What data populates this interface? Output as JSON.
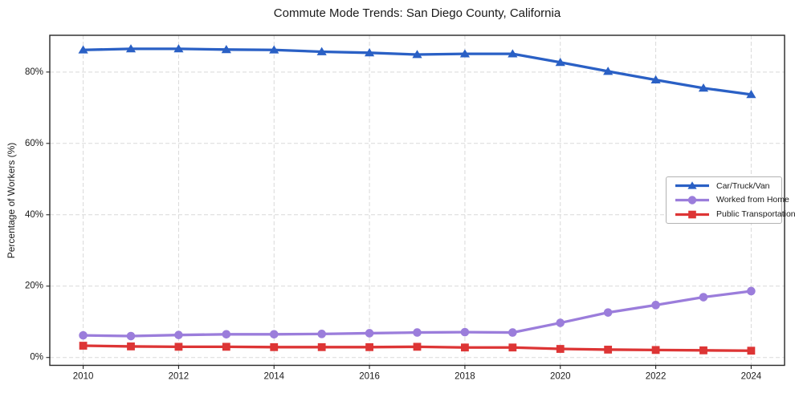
{
  "figure": {
    "background": "#ffffff",
    "frame_color": "#262626",
    "grid_color": "#d9d9d9"
  },
  "chart_data": {
    "type": "line",
    "title": "Commute Mode Trends: San Diego County, California",
    "xlabel": "",
    "ylabel": "Percentage of Workers (%)",
    "x": [
      2010,
      2011,
      2012,
      2013,
      2014,
      2015,
      2016,
      2017,
      2018,
      2019,
      2020,
      2021,
      2022,
      2023,
      2024
    ],
    "series": [
      {
        "name": "Car/Truck/Van",
        "marker": "triangle",
        "color": "#2a60c5",
        "values": [
          86.2,
          86.5,
          86.5,
          86.3,
          86.2,
          85.7,
          85.4,
          84.9,
          85.1,
          85.1,
          82.7,
          80.2,
          77.8,
          75.5,
          73.7
        ]
      },
      {
        "name": "Worked from Home",
        "marker": "circle",
        "color": "#9b7ddb",
        "values": [
          6.2,
          6.0,
          6.3,
          6.5,
          6.5,
          6.6,
          6.8,
          7.0,
          7.1,
          7.0,
          9.7,
          12.6,
          14.7,
          16.9,
          18.6
        ]
      },
      {
        "name": "Public Transportation",
        "marker": "square",
        "color": "#dd3535",
        "values": [
          3.3,
          3.1,
          3.0,
          3.0,
          2.9,
          2.9,
          2.9,
          3.0,
          2.8,
          2.8,
          2.4,
          2.2,
          2.1,
          2.0,
          1.9
        ]
      }
    ],
    "xticks": {
      "values": [
        2010,
        2012,
        2014,
        2016,
        2018,
        2020,
        2022,
        2024
      ],
      "labels": [
        "2010",
        "2012",
        "2014",
        "2016",
        "2018",
        "2020",
        "2022",
        "2024"
      ]
    },
    "yticks": {
      "values": [
        0,
        20,
        40,
        60,
        80
      ],
      "labels": [
        "0%",
        "20%",
        "40%",
        "60%",
        "80%"
      ]
    },
    "xlim": [
      2009.3,
      2024.7
    ],
    "ylim": [
      -2.2,
      90.3
    ],
    "grid": true,
    "grid_style": "dashed",
    "legend_position": "center-right"
  }
}
